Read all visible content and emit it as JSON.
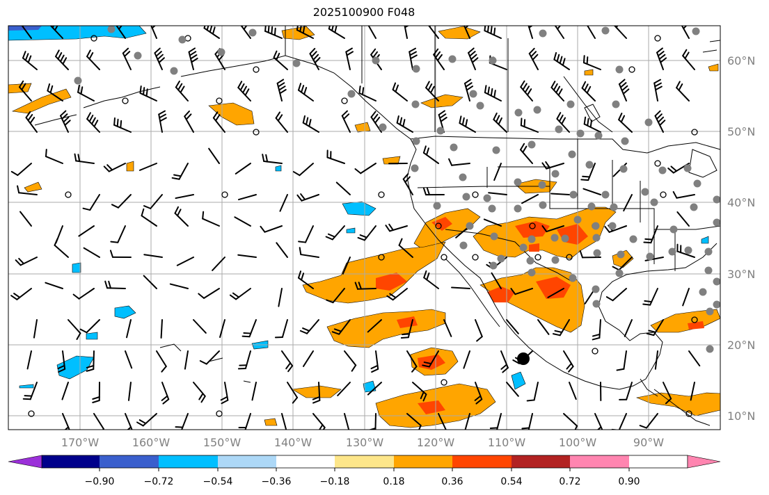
{
  "title": "2025100900 F048",
  "lat_labels": [
    "60°N",
    "50°N",
    "40°N",
    "30°N",
    "20°N",
    "10°N"
  ],
  "lon_labels": [
    "170°W",
    "160°W",
    "150°W",
    "140°W",
    "130°W",
    "120°W",
    "110°W",
    "100°W",
    "90°W"
  ],
  "colorbar": {
    "colors": [
      "#9b30d9",
      "#00008b",
      "#3a5fcd",
      "#00bfff",
      "#add8f7",
      "#ffffff",
      "#fde68a",
      "#ffa500",
      "#ff4500",
      "#b22222",
      "#ff85b0"
    ],
    "tick_labels": [
      "−0.90",
      "−0.72",
      "−0.54",
      "−0.36",
      "−0.18",
      "0.18",
      "0.36",
      "0.54",
      "0.72",
      "0.90"
    ]
  },
  "map_colors": {
    "positive_low": "#ffa500",
    "positive_high": "#ff4500",
    "negative": "#00bfff",
    "station_dot": "#808080",
    "barb": "#000000"
  }
}
